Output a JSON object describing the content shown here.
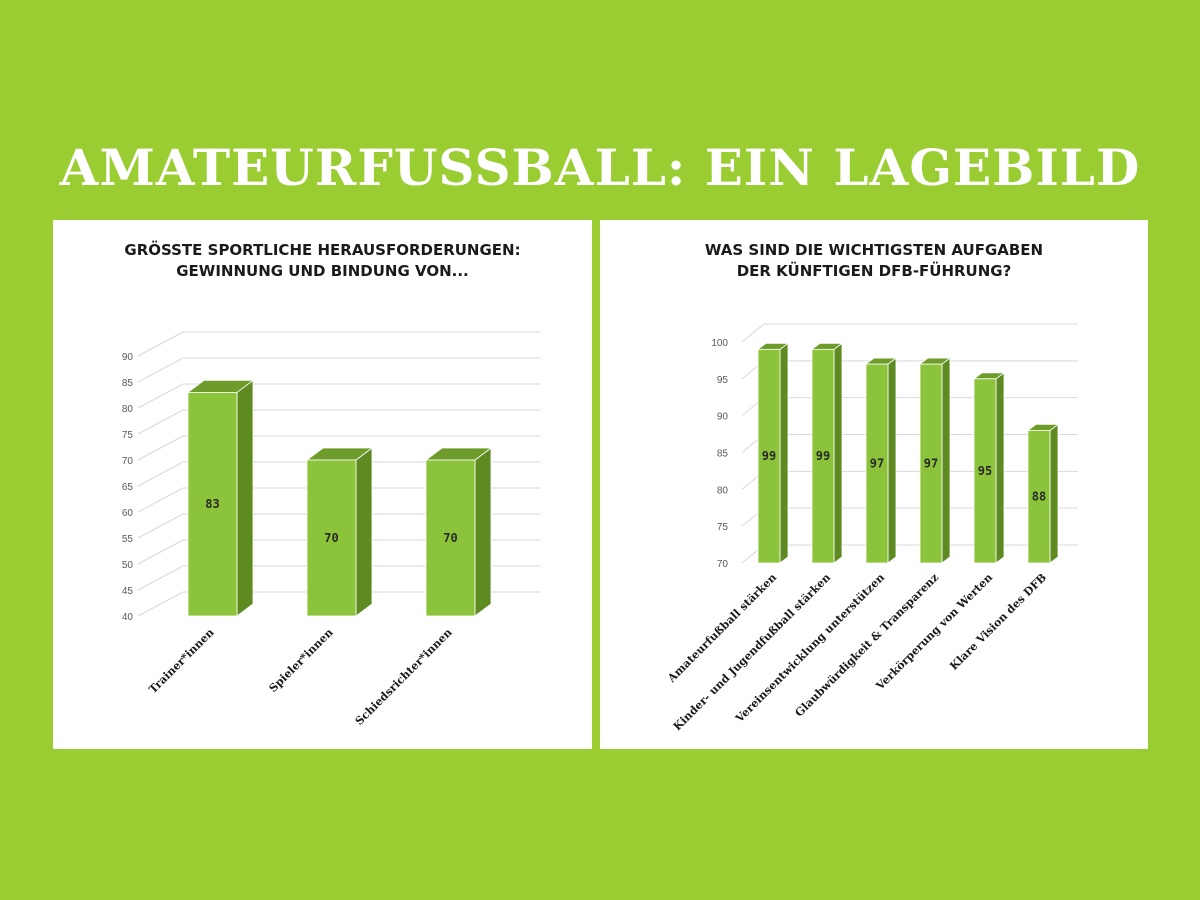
{
  "page": {
    "title": "AMATEURFUSSBALL: EIN LAGEBILD",
    "background_color": "#9ACD32"
  },
  "colors": {
    "bar_front": "#8BC43A",
    "bar_side": "#5E8A22",
    "bar_top": "#6E9C2A",
    "grid": "#D9D9D9",
    "bar_edge": "#ffffff"
  },
  "chart_data": [
    {
      "type": "bar",
      "title_lines": [
        "GRÖSSTE SPORTLICHE HERAUSFORDERUNGEN:",
        "GEWINNUNG UND BINDUNG VON..."
      ],
      "categories": [
        "Trainer*innen",
        "Spieler*innen",
        "Schiedsrichter*innen"
      ],
      "values": [
        83,
        70,
        70
      ],
      "data_labels": [
        "83",
        "70",
        "70"
      ],
      "ylim": [
        40,
        90
      ],
      "yticks": [
        40,
        45,
        50,
        55,
        60,
        65,
        70,
        75,
        80,
        85,
        90
      ],
      "grid": true,
      "three_d": true
    },
    {
      "type": "bar",
      "title_lines": [
        "WAS SIND DIE WICHTIGSTEN AUFGABEN",
        "DER KÜNFTIGEN DFB-FÜHRUNG?"
      ],
      "categories": [
        "Amateurfußball stärken",
        "Kinder- und Jugendfußball stärken",
        "Vereinsentwicklung unterstützen",
        "Glaubwürdigkeit & Transparenz",
        "Verkörperung von Werten",
        "Klare Vision des DFB"
      ],
      "values": [
        99,
        99,
        97,
        97,
        95,
        88
      ],
      "data_labels": [
        "99",
        "99",
        "97",
        "97",
        "95",
        "88"
      ],
      "ylim": [
        70,
        100
      ],
      "yticks": [
        70,
        75,
        80,
        85,
        90,
        95,
        100
      ],
      "grid": true,
      "three_d": true
    }
  ]
}
